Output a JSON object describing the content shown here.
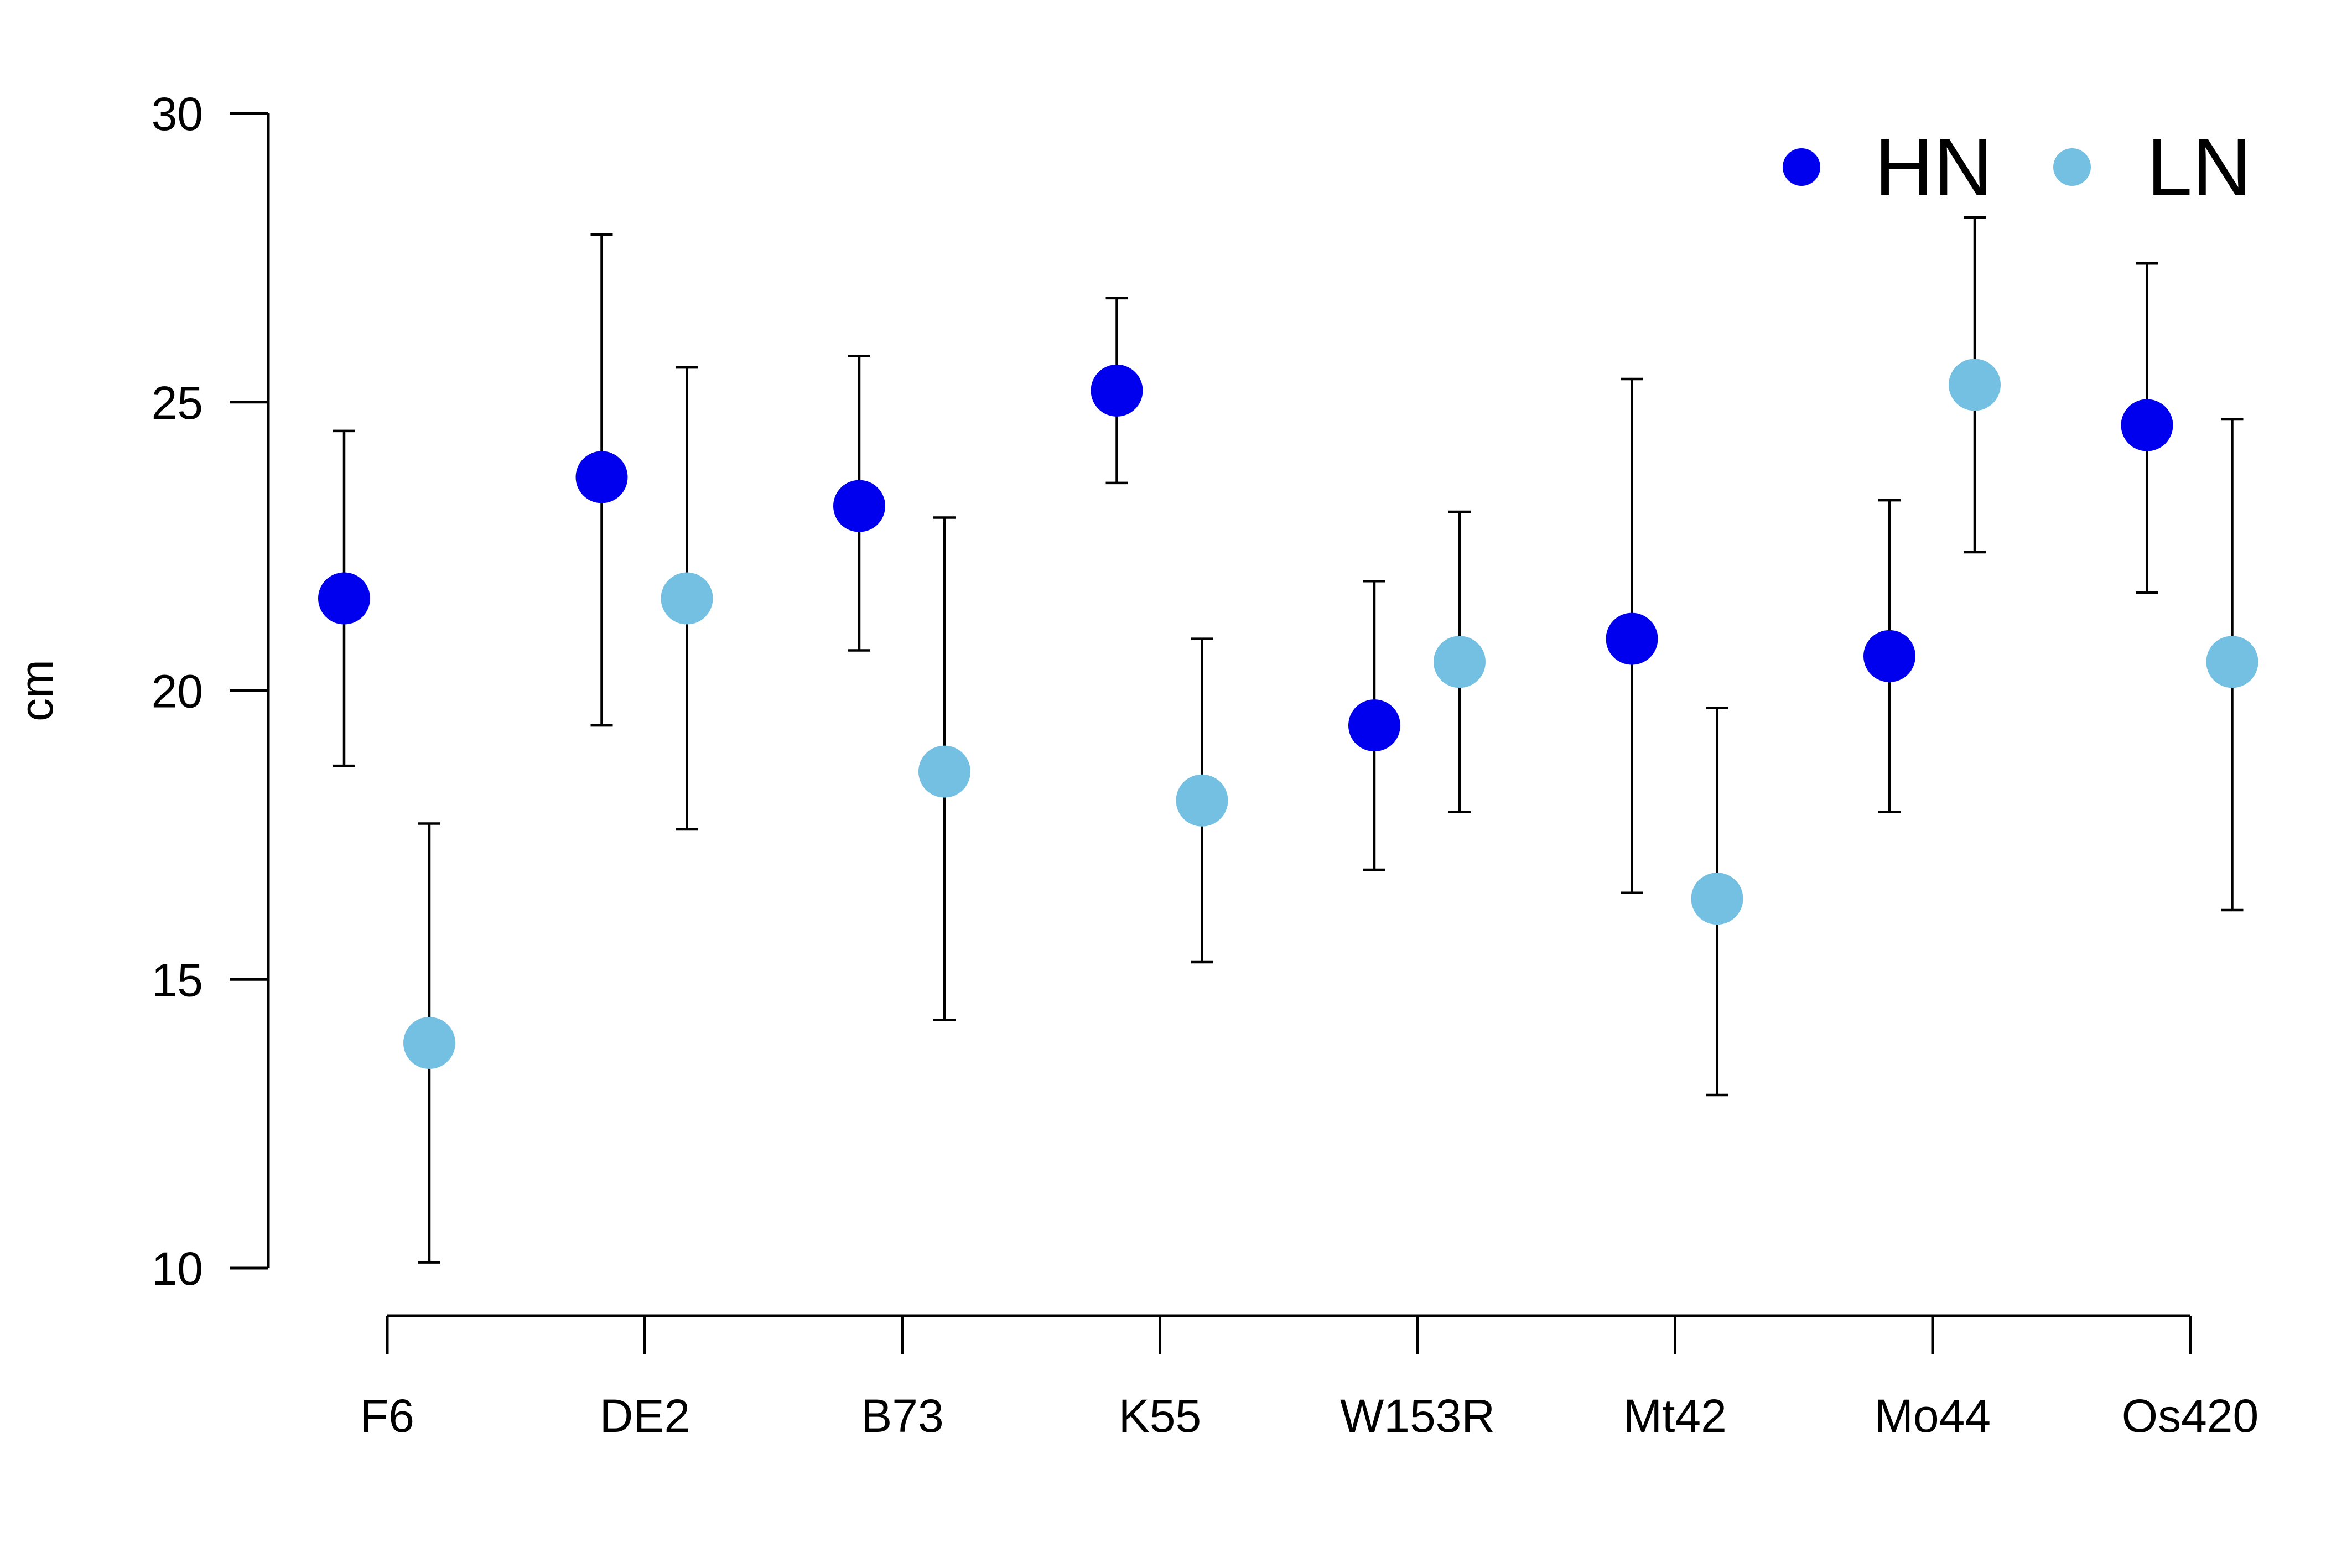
{
  "chart_data": {
    "type": "scatter",
    "title": "",
    "xlabel": "",
    "ylabel": "cm",
    "ylim": [
      10,
      30
    ],
    "yticks": [
      "10",
      "15",
      "20",
      "25",
      "30"
    ],
    "categories": [
      "F6",
      "DE2",
      "B73",
      "K55",
      "W153R",
      "Mt42",
      "Mo44",
      "Os420"
    ],
    "legend_position": "top-right",
    "grid": false,
    "series": [
      {
        "name": "HN",
        "color": "#0000EE",
        "values": [
          21.6,
          23.7,
          23.2,
          25.2,
          19.4,
          20.9,
          20.6,
          24.6
        ],
        "err_low": [
          18.7,
          19.4,
          20.7,
          23.6,
          16.9,
          16.5,
          17.9,
          21.7
        ],
        "err_high": [
          24.5,
          27.9,
          25.8,
          26.8,
          21.9,
          25.4,
          23.3,
          27.4
        ]
      },
      {
        "name": "LN",
        "color": "#74C0E3",
        "values": [
          13.9,
          21.6,
          18.6,
          18.1,
          20.5,
          16.4,
          25.3,
          20.5
        ],
        "err_low": [
          10.1,
          17.6,
          14.3,
          15.3,
          17.9,
          13.0,
          22.4,
          16.2
        ],
        "err_high": [
          17.7,
          25.6,
          23.0,
          20.9,
          23.1,
          19.7,
          28.2,
          24.7
        ]
      }
    ]
  }
}
